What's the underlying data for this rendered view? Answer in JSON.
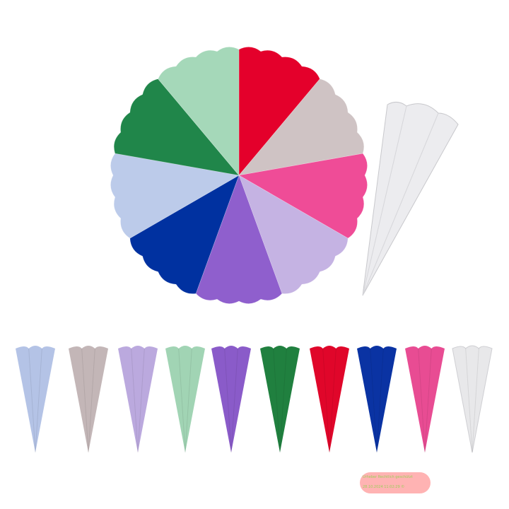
{
  "wheel_colors": [
    "#e4002b",
    "#cfc3c4",
    "#ef4c97",
    "#c5b3e3",
    "#8f5fcd",
    "#0031a0",
    "#bccbea",
    "#20864a",
    "#a5d8b9"
  ],
  "large_cone_color": "#ececef",
  "cones": [
    {
      "color": "#b4c3e6"
    },
    {
      "color": "#c3b6b7"
    },
    {
      "color": "#bba9de"
    },
    {
      "color": "#a1d4b4"
    },
    {
      "color": "#8a5bc9"
    },
    {
      "color": "#20803f"
    },
    {
      "color": "#e0062a"
    },
    {
      "color": "#0a33a3"
    },
    {
      "color": "#e84c93"
    },
    {
      "color": "#e8e8ea"
    }
  ],
  "watermark": {
    "line1": "Urheber Rechtlich geschützt",
    "line2": "28.10.2024 11:02:29 ©"
  }
}
